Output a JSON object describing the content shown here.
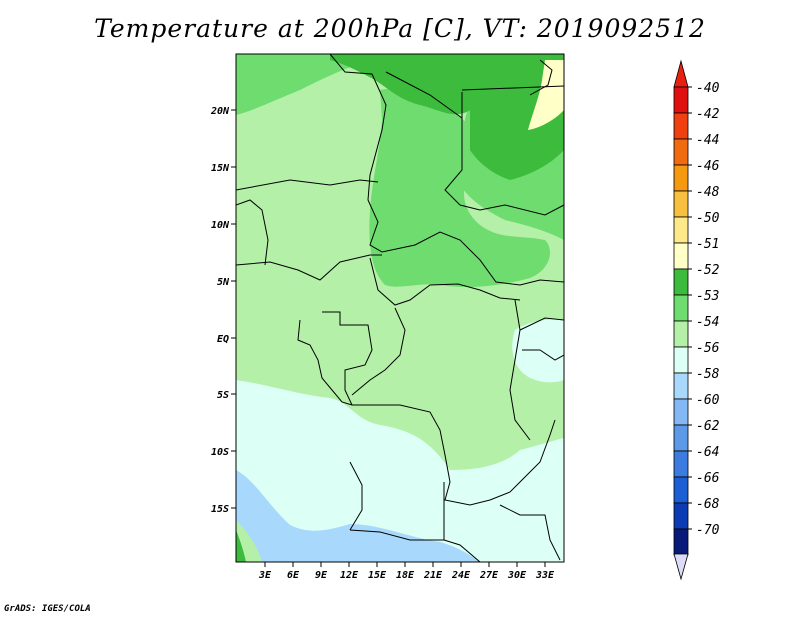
{
  "title": "Temperature at 200hPa [C], VT: 2019092512",
  "credit": "GrADS: IGES/COLA",
  "map": {
    "lat_labels": [
      "20N",
      "15N",
      "10N",
      "5N",
      "EQ",
      "5S",
      "10S",
      "15S"
    ],
    "lon_labels": [
      "3E",
      "6E",
      "9E",
      "12E",
      "15E",
      "18E",
      "21E",
      "24E",
      "27E",
      "30E",
      "33E"
    ]
  },
  "legend": {
    "labels": [
      "-40",
      "-42",
      "-44",
      "-46",
      "-48",
      "-50",
      "-51",
      "-52",
      "-53",
      "-54",
      "-56",
      "-58",
      "-60",
      "-62",
      "-64",
      "-66",
      "-68",
      "-70"
    ],
    "colors": [
      "#e01010",
      "#f04010",
      "#f06a10",
      "#f59a10",
      "#f8c040",
      "#fde98a",
      "#ffffc8",
      "#3cbb3c",
      "#6fdc6f",
      "#b4f0a8",
      "#dcfff6",
      "#a8d8fc",
      "#84b8f4",
      "#5c9ae8",
      "#3c7ce0",
      "#1c5ed4",
      "#0c3cb4",
      "#0a1a78"
    ],
    "top_arrow_color": "#e82010",
    "bottom_arrow_color": "#dcdcf8"
  }
}
